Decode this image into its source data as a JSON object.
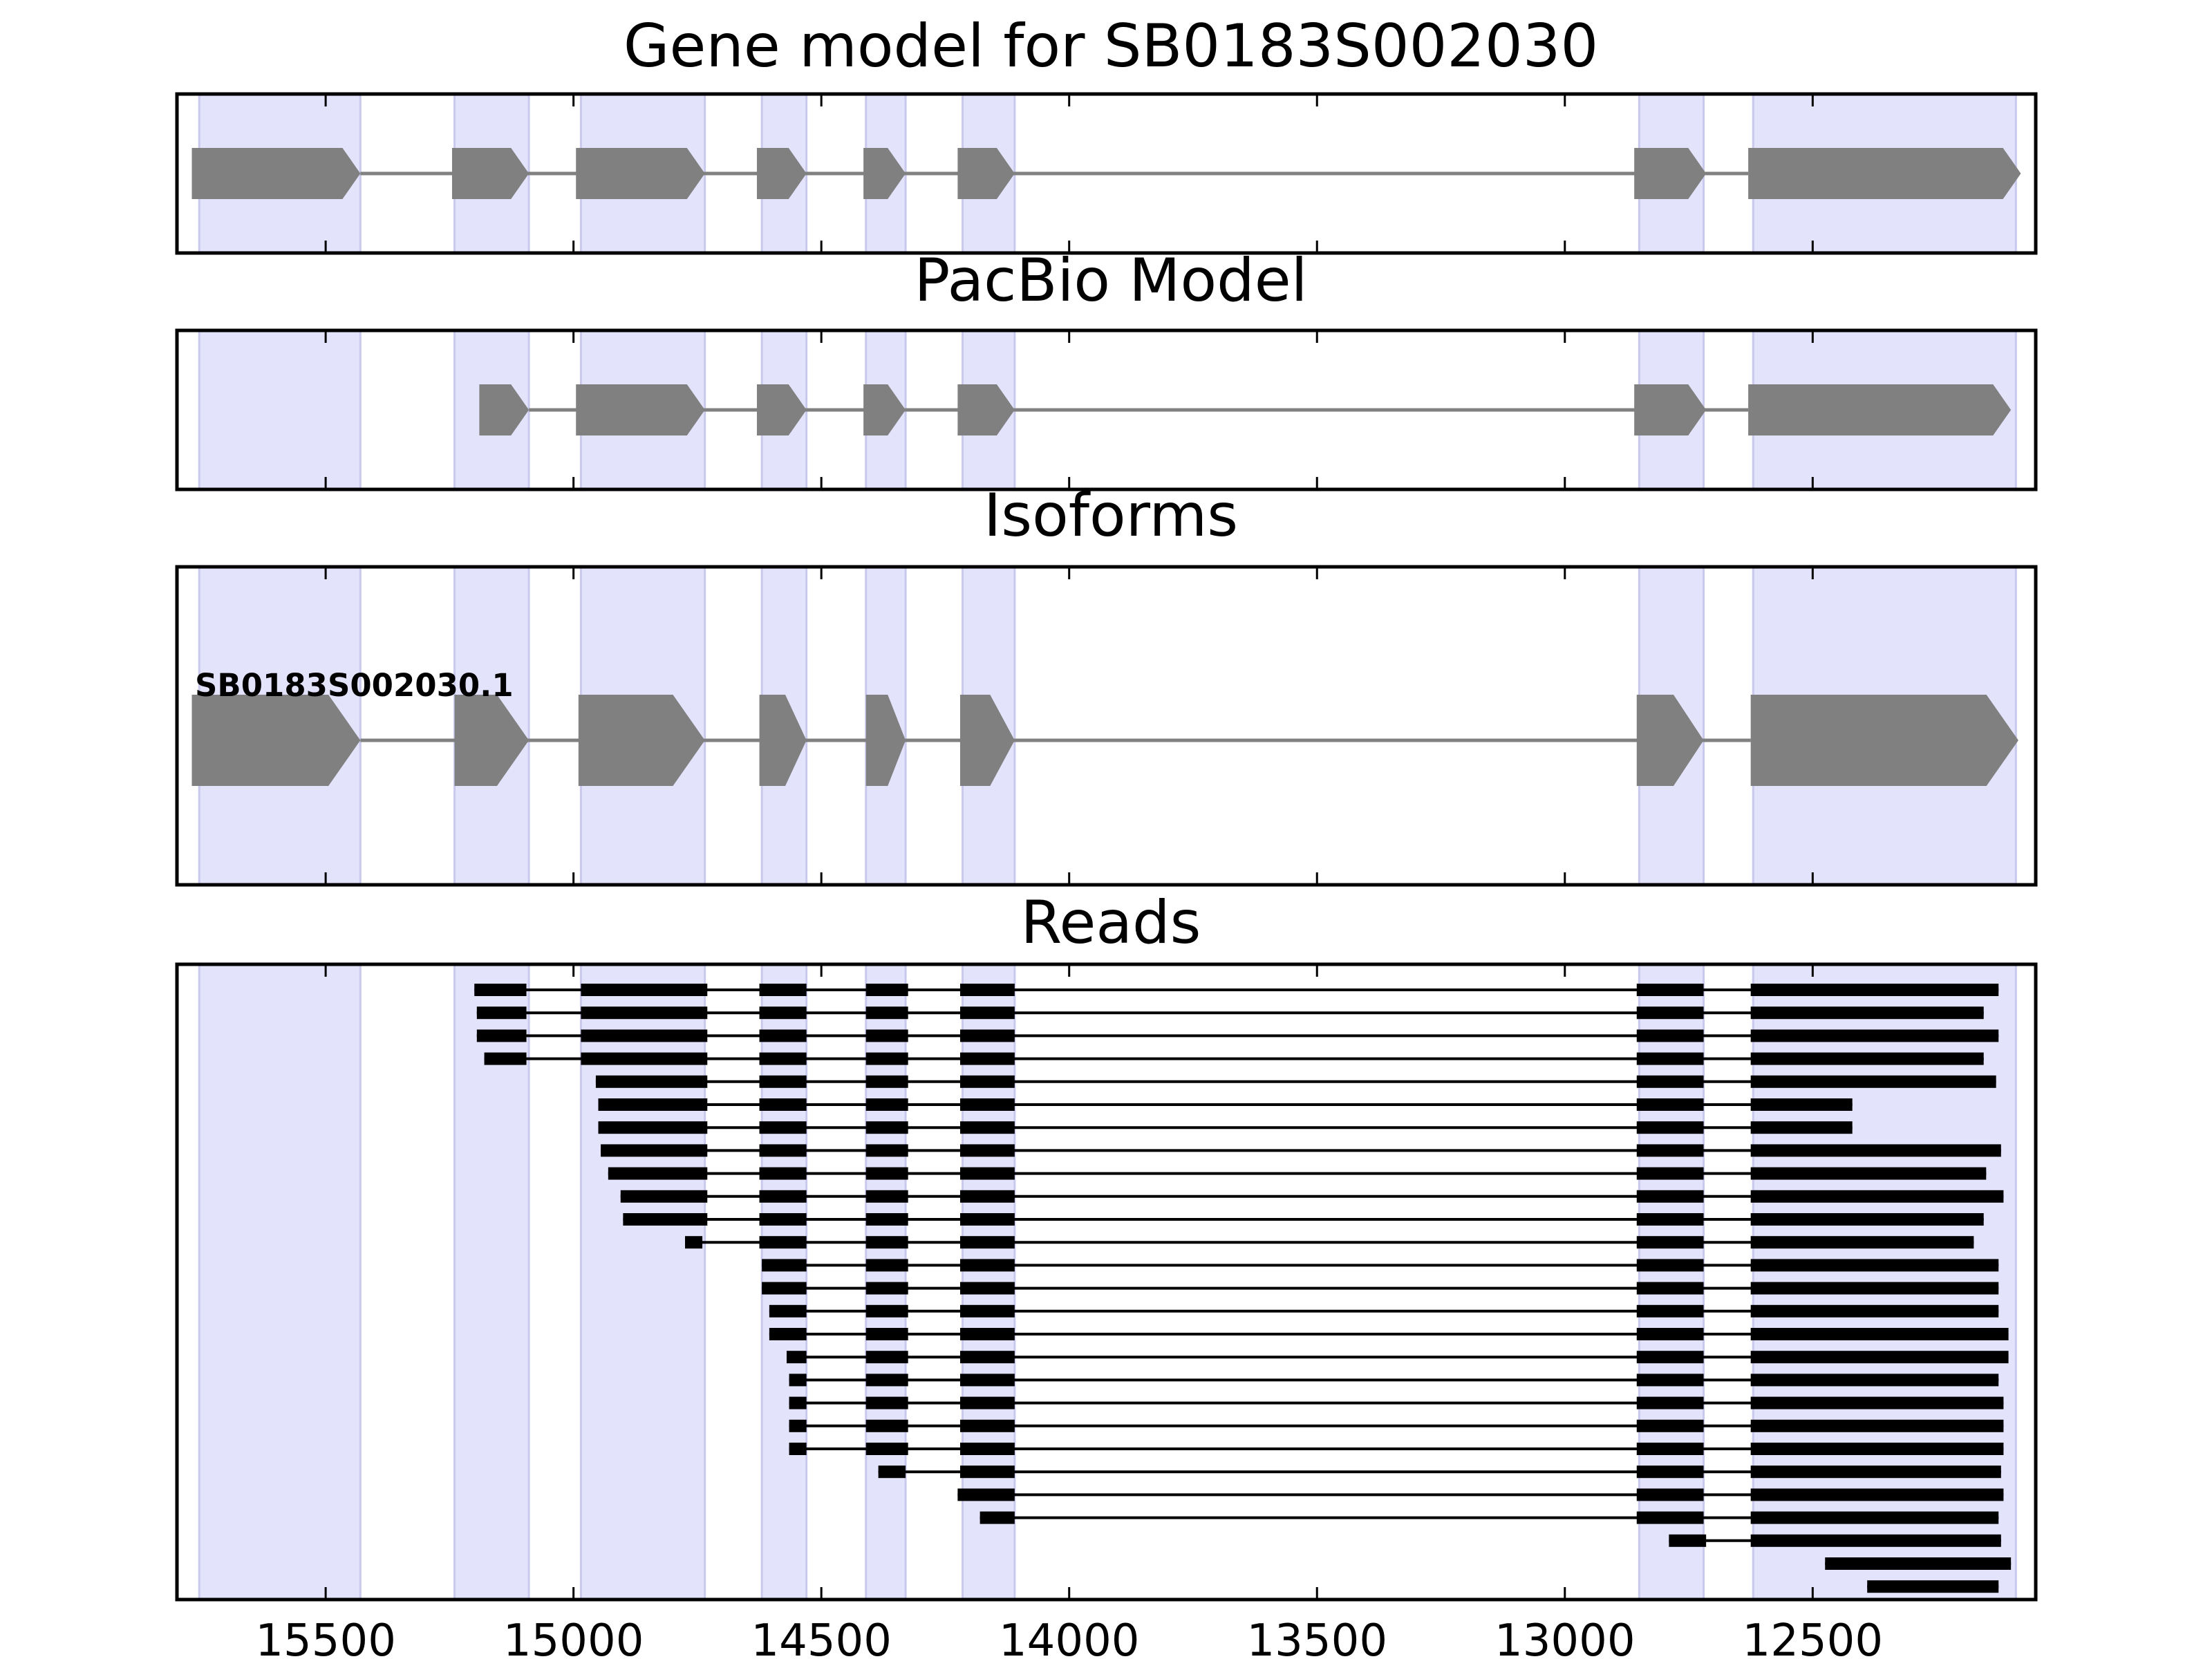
{
  "colors": {
    "exon_band": "#e3e3fb",
    "exon_band_edge": "#c9c9ee",
    "gene_model": "#808080",
    "read": "#000000",
    "frame": "#000000"
  },
  "x_axis": {
    "domain": [
      15800,
      12050
    ],
    "direction": "reversed",
    "ticks": [
      15500,
      15000,
      14500,
      14000,
      13500,
      13000,
      12500
    ],
    "tick_labels": [
      "15500",
      "15000",
      "14500",
      "14000",
      "13500",
      "13000",
      "12500"
    ]
  },
  "chart_data": [
    {
      "type": "gene-model",
      "title": "Gene model for SB0183S002030",
      "strand": "reverse",
      "exon_bands": [
        [
          15755,
          15430
        ],
        [
          15240,
          15090
        ],
        [
          14985,
          14735
        ],
        [
          14620,
          14530
        ],
        [
          14410,
          14330
        ],
        [
          14215,
          14110
        ],
        [
          12850,
          12720
        ],
        [
          12620,
          12090
        ]
      ],
      "exons": [
        [
          15770,
          15430
        ],
        [
          15245,
          15090
        ],
        [
          14995,
          14735
        ],
        [
          14630,
          14530
        ],
        [
          14415,
          14330
        ],
        [
          14225,
          14110
        ],
        [
          12860,
          12715
        ],
        [
          12630,
          12080
        ]
      ]
    },
    {
      "type": "gene-model",
      "title": "PacBio Model",
      "strand": "reverse",
      "exon_bands": [
        [
          15755,
          15430
        ],
        [
          15240,
          15090
        ],
        [
          14985,
          14735
        ],
        [
          14620,
          14530
        ],
        [
          14410,
          14330
        ],
        [
          14215,
          14110
        ],
        [
          12850,
          12720
        ],
        [
          12620,
          12090
        ]
      ],
      "exons": [
        [
          15190,
          15090
        ],
        [
          14995,
          14735
        ],
        [
          14630,
          14530
        ],
        [
          14415,
          14330
        ],
        [
          14225,
          14110
        ],
        [
          12860,
          12715
        ],
        [
          12630,
          12100
        ]
      ]
    },
    {
      "type": "gene-model",
      "title": "Isoforms",
      "strand": "reverse",
      "isoform_label": "SB0183S002030.1",
      "exon_bands": [
        [
          15755,
          15430
        ],
        [
          15240,
          15090
        ],
        [
          14985,
          14735
        ],
        [
          14620,
          14530
        ],
        [
          14410,
          14330
        ],
        [
          14215,
          14110
        ],
        [
          12850,
          12720
        ],
        [
          12620,
          12090
        ]
      ],
      "exons": [
        [
          15770,
          15430
        ],
        [
          15240,
          15090
        ],
        [
          14990,
          14735
        ],
        [
          14625,
          14530
        ],
        [
          14410,
          14330
        ],
        [
          14220,
          14110
        ],
        [
          12855,
          12720
        ],
        [
          12625,
          12085
        ]
      ]
    },
    {
      "type": "reads",
      "title": "Reads",
      "exon_bands": [
        [
          15755,
          15430
        ],
        [
          15240,
          15090
        ],
        [
          14985,
          14735
        ],
        [
          14620,
          14530
        ],
        [
          14410,
          14330
        ],
        [
          14215,
          14110
        ],
        [
          12850,
          12720
        ],
        [
          12620,
          12090
        ]
      ],
      "reads": [
        [
          [
            15200,
            15095
          ],
          [
            14985,
            14730
          ],
          [
            14625,
            14530
          ],
          [
            14410,
            14325
          ],
          [
            14220,
            14110
          ],
          [
            12855,
            12720
          ],
          [
            12625,
            12125
          ]
        ],
        [
          [
            15195,
            15095
          ],
          [
            14985,
            14730
          ],
          [
            14625,
            14530
          ],
          [
            14410,
            14325
          ],
          [
            14220,
            14110
          ],
          [
            12855,
            12720
          ],
          [
            12625,
            12155
          ]
        ],
        [
          [
            15195,
            15095
          ],
          [
            14985,
            14730
          ],
          [
            14625,
            14530
          ],
          [
            14410,
            14325
          ],
          [
            14220,
            14110
          ],
          [
            12855,
            12720
          ],
          [
            12625,
            12125
          ]
        ],
        [
          [
            15180,
            15095
          ],
          [
            14985,
            14730
          ],
          [
            14625,
            14530
          ],
          [
            14410,
            14325
          ],
          [
            14220,
            14110
          ],
          [
            12855,
            12720
          ],
          [
            12625,
            12155
          ]
        ],
        [
          [
            14955,
            14730
          ],
          [
            14625,
            14530
          ],
          [
            14410,
            14325
          ],
          [
            14220,
            14110
          ],
          [
            12855,
            12720
          ],
          [
            12625,
            12130
          ]
        ],
        [
          [
            14950,
            14730
          ],
          [
            14625,
            14530
          ],
          [
            14410,
            14325
          ],
          [
            14220,
            14110
          ],
          [
            12855,
            12720
          ],
          [
            12625,
            12420
          ]
        ],
        [
          [
            14950,
            14730
          ],
          [
            14625,
            14530
          ],
          [
            14410,
            14325
          ],
          [
            14220,
            14110
          ],
          [
            12855,
            12720
          ],
          [
            12625,
            12420
          ]
        ],
        [
          [
            14945,
            14730
          ],
          [
            14625,
            14530
          ],
          [
            14410,
            14325
          ],
          [
            14220,
            14110
          ],
          [
            12855,
            12720
          ],
          [
            12625,
            12120
          ]
        ],
        [
          [
            14930,
            14730
          ],
          [
            14625,
            14530
          ],
          [
            14410,
            14325
          ],
          [
            14220,
            14110
          ],
          [
            12855,
            12720
          ],
          [
            12625,
            12150
          ]
        ],
        [
          [
            14905,
            14730
          ],
          [
            14625,
            14530
          ],
          [
            14410,
            14325
          ],
          [
            14220,
            14110
          ],
          [
            12855,
            12720
          ],
          [
            12625,
            12115
          ]
        ],
        [
          [
            14900,
            14730
          ],
          [
            14625,
            14530
          ],
          [
            14410,
            14325
          ],
          [
            14220,
            14110
          ],
          [
            12855,
            12720
          ],
          [
            12625,
            12155
          ]
        ],
        [
          [
            14775,
            14740
          ],
          [
            14625,
            14530
          ],
          [
            14410,
            14325
          ],
          [
            14220,
            14110
          ],
          [
            12855,
            12720
          ],
          [
            12625,
            12175
          ]
        ],
        [
          [
            14620,
            14530
          ],
          [
            14410,
            14325
          ],
          [
            14220,
            14110
          ],
          [
            12855,
            12720
          ],
          [
            12625,
            12125
          ]
        ],
        [
          [
            14620,
            14530
          ],
          [
            14410,
            14325
          ],
          [
            14220,
            14110
          ],
          [
            12855,
            12720
          ],
          [
            12625,
            12125
          ]
        ],
        [
          [
            14605,
            14530
          ],
          [
            14410,
            14325
          ],
          [
            14220,
            14110
          ],
          [
            12855,
            12720
          ],
          [
            12625,
            12125
          ]
        ],
        [
          [
            14605,
            14530
          ],
          [
            14410,
            14325
          ],
          [
            14220,
            14110
          ],
          [
            12855,
            12720
          ],
          [
            12625,
            12105
          ]
        ],
        [
          [
            14570,
            14530
          ],
          [
            14410,
            14325
          ],
          [
            14220,
            14110
          ],
          [
            12855,
            12720
          ],
          [
            12625,
            12105
          ]
        ],
        [
          [
            14565,
            14530
          ],
          [
            14410,
            14325
          ],
          [
            14220,
            14110
          ],
          [
            12855,
            12720
          ],
          [
            12625,
            12125
          ]
        ],
        [
          [
            14565,
            14530
          ],
          [
            14410,
            14325
          ],
          [
            14220,
            14110
          ],
          [
            12855,
            12720
          ],
          [
            12625,
            12115
          ]
        ],
        [
          [
            14565,
            14530
          ],
          [
            14410,
            14325
          ],
          [
            14220,
            14110
          ],
          [
            12855,
            12720
          ],
          [
            12625,
            12115
          ]
        ],
        [
          [
            14565,
            14530
          ],
          [
            14410,
            14325
          ],
          [
            14220,
            14110
          ],
          [
            12855,
            12720
          ],
          [
            12625,
            12115
          ]
        ],
        [
          [
            14385,
            14330
          ],
          [
            14220,
            14110
          ],
          [
            12855,
            12720
          ],
          [
            12625,
            12120
          ]
        ],
        [
          [
            14225,
            14110
          ],
          [
            12855,
            12720
          ],
          [
            12625,
            12115
          ]
        ],
        [
          [
            14180,
            14110
          ],
          [
            12855,
            12720
          ],
          [
            12625,
            12125
          ]
        ],
        [
          [
            12790,
            12715
          ],
          [
            12625,
            12120
          ]
        ],
        [
          [
            12475,
            12100
          ]
        ],
        [
          [
            12390,
            12125
          ]
        ]
      ]
    }
  ]
}
